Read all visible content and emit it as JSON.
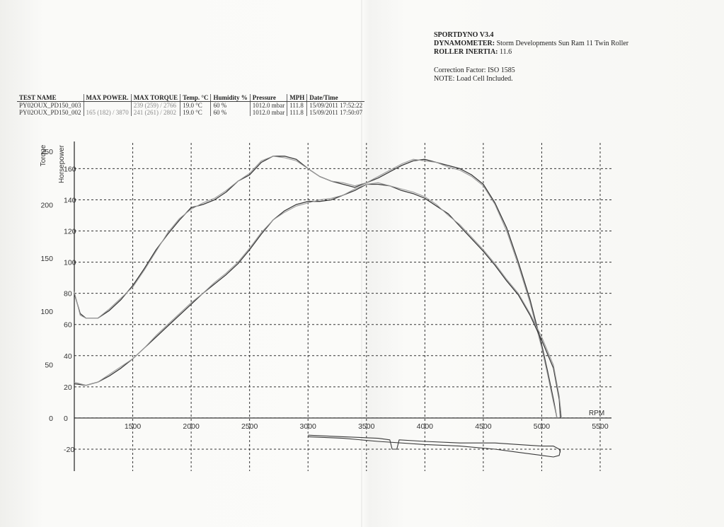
{
  "header": {
    "software": "SPORTDYNO V3.4",
    "dyno_label": "DYNAMOMETER:",
    "dyno_value": "Storm Developments Sun Ram 11 Twin Roller",
    "inertia_label": "ROLLER INERTIA:",
    "inertia_value": "11.6",
    "correction": "Correction Factor: ISO 1585",
    "note": "NOTE: Load Cell Included."
  },
  "table": {
    "columns": [
      "TEST NAME",
      "MAX POWER.",
      "MAX TORQUE",
      "Temp. °C",
      "Humidity %",
      "Pressure",
      "MPH",
      "Date/Time"
    ],
    "rows": [
      [
        "PY02OUX_PD150_003",
        "",
        "239 (259) / 2766",
        "19.0 °C",
        "60 %",
        "1012.0 mbar",
        "111.8",
        "15/09/2011 17:52:22"
      ],
      [
        "PY02OUX_PD150_002",
        "165 (182) / 3870",
        "241 (261) / 2802",
        "19.0 °C",
        "60 %",
        "1012.0 mbar",
        "111.8",
        "15/09/2011 17:50:07"
      ]
    ]
  },
  "chart_data": {
    "type": "line",
    "xlabel": "RPM",
    "ylabel_left": "Torque",
    "ylabel_right": "Horsepower",
    "xlim": [
      1000,
      5500
    ],
    "x_ticks": [
      1500,
      2000,
      2500,
      3000,
      3500,
      4000,
      4500,
      5000,
      5500
    ],
    "torque_ticks": [
      0,
      50,
      100,
      150,
      200,
      250
    ],
    "hp_ticks": [
      -20,
      0,
      20,
      40,
      60,
      80,
      100,
      120,
      140,
      160
    ],
    "hp_ylim": [
      -25,
      172
    ],
    "colors": {
      "dark": "#3a3a3a",
      "light": "#9a9a9a"
    },
    "series": [
      {
        "values": [
          [
            1000,
            80
          ],
          [
            1050,
            67
          ],
          [
            1100,
            64
          ],
          [
            1200,
            64
          ],
          [
            1300,
            69
          ],
          [
            1400,
            76
          ],
          [
            1500,
            85
          ],
          [
            1600,
            96
          ],
          [
            1700,
            108
          ],
          [
            1800,
            118
          ],
          [
            1900,
            127
          ],
          [
            2000,
            135
          ],
          [
            2100,
            137
          ],
          [
            2200,
            140
          ],
          [
            2300,
            145
          ],
          [
            2400,
            152
          ],
          [
            2500,
            156
          ],
          [
            2600,
            164
          ],
          [
            2700,
            168
          ],
          [
            2800,
            168
          ],
          [
            2900,
            166
          ],
          [
            3000,
            160
          ],
          [
            3100,
            155
          ],
          [
            3200,
            152
          ],
          [
            3300,
            150
          ],
          [
            3400,
            148
          ],
          [
            3500,
            151
          ],
          [
            3600,
            154
          ],
          [
            3700,
            158
          ],
          [
            3800,
            162
          ],
          [
            3900,
            165
          ],
          [
            4000,
            166
          ],
          [
            4100,
            164
          ],
          [
            4200,
            162
          ],
          [
            4300,
            160
          ],
          [
            4400,
            156
          ],
          [
            4500,
            150
          ],
          [
            4600,
            138
          ],
          [
            4700,
            122
          ],
          [
            4800,
            100
          ],
          [
            4900,
            76
          ],
          [
            5000,
            47
          ],
          [
            5050,
            30
          ],
          [
            5100,
            12
          ],
          [
            5130,
            0
          ]
        ]
      },
      {
        "values": [
          [
            1000,
            81
          ],
          [
            1050,
            66
          ],
          [
            1100,
            64
          ],
          [
            1200,
            64
          ],
          [
            1300,
            70
          ],
          [
            1400,
            77
          ],
          [
            1500,
            84
          ],
          [
            1600,
            95
          ],
          [
            1700,
            107
          ],
          [
            1800,
            119
          ],
          [
            1900,
            128
          ],
          [
            2000,
            134
          ],
          [
            2100,
            138
          ],
          [
            2200,
            141
          ],
          [
            2300,
            146
          ],
          [
            2400,
            152
          ],
          [
            2500,
            157
          ],
          [
            2600,
            165
          ],
          [
            2700,
            168
          ],
          [
            2800,
            167
          ],
          [
            2900,
            165
          ],
          [
            3000,
            160
          ],
          [
            3100,
            155
          ],
          [
            3200,
            152
          ],
          [
            3300,
            151
          ],
          [
            3400,
            149
          ],
          [
            3500,
            151
          ],
          [
            3600,
            155
          ],
          [
            3700,
            159
          ],
          [
            3800,
            163
          ],
          [
            3900,
            166
          ],
          [
            4000,
            165
          ],
          [
            4100,
            164
          ],
          [
            4200,
            161
          ],
          [
            4300,
            159
          ],
          [
            4400,
            155
          ],
          [
            4500,
            149
          ],
          [
            4600,
            137
          ],
          [
            4700,
            120
          ],
          [
            4800,
            98
          ],
          [
            4900,
            74
          ],
          [
            5000,
            45
          ],
          [
            5050,
            28
          ],
          [
            5100,
            10
          ],
          [
            5130,
            0
          ]
        ]
      },
      {
        "values": [
          [
            1000,
            22
          ],
          [
            1100,
            21
          ],
          [
            1200,
            23
          ],
          [
            1300,
            27
          ],
          [
            1400,
            32
          ],
          [
            1500,
            38
          ],
          [
            1600,
            45
          ],
          [
            1700,
            52
          ],
          [
            1800,
            59
          ],
          [
            1900,
            66
          ],
          [
            2000,
            73
          ],
          [
            2100,
            80
          ],
          [
            2200,
            86
          ],
          [
            2300,
            92
          ],
          [
            2400,
            99
          ],
          [
            2500,
            108
          ],
          [
            2600,
            118
          ],
          [
            2700,
            127
          ],
          [
            2800,
            133
          ],
          [
            2900,
            137
          ],
          [
            3000,
            139
          ],
          [
            3100,
            139
          ],
          [
            3200,
            140
          ],
          [
            3300,
            143
          ],
          [
            3400,
            146
          ],
          [
            3500,
            150
          ],
          [
            3600,
            150
          ],
          [
            3700,
            149
          ],
          [
            3800,
            146
          ],
          [
            3900,
            144
          ],
          [
            4000,
            141
          ],
          [
            4100,
            136
          ],
          [
            4200,
            131
          ],
          [
            4300,
            123
          ],
          [
            4400,
            115
          ],
          [
            4500,
            107
          ],
          [
            4600,
            98
          ],
          [
            4700,
            88
          ],
          [
            4800,
            79
          ],
          [
            4900,
            66
          ],
          [
            5000,
            50
          ],
          [
            5100,
            32
          ],
          [
            5150,
            12
          ],
          [
            5160,
            0
          ]
        ]
      },
      {
        "values": [
          [
            1000,
            23
          ],
          [
            1100,
            21
          ],
          [
            1200,
            23
          ],
          [
            1300,
            28
          ],
          [
            1400,
            33
          ],
          [
            1500,
            38
          ],
          [
            1600,
            45
          ],
          [
            1700,
            53
          ],
          [
            1800,
            60
          ],
          [
            1900,
            67
          ],
          [
            2000,
            74
          ],
          [
            2100,
            80
          ],
          [
            2200,
            87
          ],
          [
            2300,
            93
          ],
          [
            2400,
            100
          ],
          [
            2500,
            109
          ],
          [
            2600,
            119
          ],
          [
            2700,
            127
          ],
          [
            2800,
            132
          ],
          [
            2900,
            136
          ],
          [
            3000,
            138
          ],
          [
            3100,
            140
          ],
          [
            3200,
            141
          ],
          [
            3300,
            143
          ],
          [
            3400,
            147
          ],
          [
            3500,
            150
          ],
          [
            3600,
            151
          ],
          [
            3700,
            149
          ],
          [
            3800,
            147
          ],
          [
            3900,
            145
          ],
          [
            4000,
            142
          ],
          [
            4100,
            137
          ],
          [
            4200,
            130
          ],
          [
            4300,
            124
          ],
          [
            4400,
            116
          ],
          [
            4500,
            108
          ],
          [
            4600,
            99
          ],
          [
            4700,
            89
          ],
          [
            4800,
            80
          ],
          [
            4900,
            67
          ],
          [
            5000,
            52
          ],
          [
            5100,
            34
          ],
          [
            5150,
            14
          ],
          [
            5170,
            0
          ]
        ]
      },
      {
        "values": [
          [
            3000,
            -11
          ],
          [
            3300,
            -12
          ],
          [
            3600,
            -13
          ],
          [
            3700,
            -14
          ],
          [
            3720,
            -20
          ],
          [
            3760,
            -20
          ],
          [
            3780,
            -14
          ],
          [
            4000,
            -15
          ],
          [
            4300,
            -16
          ],
          [
            4600,
            -16
          ],
          [
            4800,
            -17
          ],
          [
            5000,
            -18
          ],
          [
            5100,
            -18
          ],
          [
            5150,
            -20
          ],
          [
            5160,
            -22
          ]
        ]
      },
      {
        "values": [
          [
            3000,
            -12
          ],
          [
            3300,
            -13
          ],
          [
            3600,
            -15
          ],
          [
            4000,
            -17
          ],
          [
            4300,
            -18
          ],
          [
            4600,
            -20
          ],
          [
            4800,
            -22
          ],
          [
            5000,
            -24
          ],
          [
            5100,
            -25
          ],
          [
            5150,
            -24
          ],
          [
            5160,
            -20
          ]
        ]
      }
    ]
  }
}
